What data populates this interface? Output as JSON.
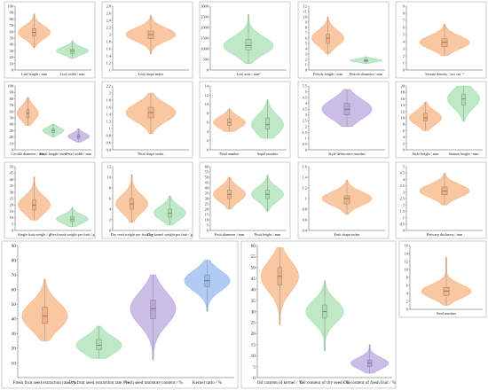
{
  "colors": {
    "orange": "#f6b27e",
    "green": "#a6dfb0",
    "purple": "#b8a4dc",
    "blue": "#93b7ef",
    "box_fill": "#ffffff",
    "box_stroke": "#7a7a7a"
  },
  "chart_data": [
    {
      "type": "violin",
      "ylim": [
        0,
        100
      ],
      "yticks": [
        0,
        10,
        20,
        30,
        40,
        50,
        60,
        70,
        80,
        90,
        100
      ],
      "categories": [
        "Leaf length / mm",
        "Leaf width / mm"
      ],
      "series": [
        {
          "category": "Leaf length / mm",
          "color": "orange",
          "min": 35,
          "q1": 53,
          "median": 59,
          "q3": 65,
          "max": 88
        },
        {
          "category": "Leaf width / mm",
          "color": "green",
          "min": 18,
          "q1": 26,
          "median": 30,
          "q3": 33,
          "max": 46
        }
      ]
    },
    {
      "type": "violin",
      "ylim": [
        1.0,
        2.8
      ],
      "yticks": [
        1.0,
        1.2,
        1.4,
        1.6,
        1.8,
        2.0,
        2.2,
        2.4,
        2.6,
        2.8
      ],
      "categories": [
        "Leaf shape index"
      ],
      "series": [
        {
          "category": "Leaf shape index",
          "color": "orange",
          "min": 1.45,
          "q1": 1.88,
          "median": 2.0,
          "q3": 2.1,
          "max": 2.55
        }
      ]
    },
    {
      "type": "violin",
      "ylim": [
        0,
        3000
      ],
      "yticks": [
        0,
        500,
        1000,
        1500,
        2000,
        2500,
        3000
      ],
      "categories": [
        "Leaf area / mm²"
      ],
      "series": [
        {
          "category": "Leaf area / mm²",
          "color": "green",
          "min": 300,
          "q1": 950,
          "median": 1150,
          "q3": 1450,
          "max": 2600
        }
      ]
    },
    {
      "type": "violin",
      "ylim": [
        0,
        12
      ],
      "yticks": [
        0,
        1,
        2,
        3,
        4,
        5,
        6,
        7,
        8,
        9,
        10,
        11,
        12
      ],
      "categories": [
        "Petiole length / mm",
        "Petiole diameter / mm"
      ],
      "series": [
        {
          "category": "Petiole length / mm",
          "color": "orange",
          "min": 3,
          "q1": 5,
          "median": 6,
          "q3": 6.7,
          "max": 10
        },
        {
          "category": "Petiole diameter / mm",
          "color": "green",
          "min": 1.2,
          "q1": 1.6,
          "median": 1.8,
          "q3": 1.95,
          "max": 2.5
        }
      ]
    },
    {
      "type": "violin",
      "ylim": [
        0,
        9
      ],
      "yticks": [
        0,
        1,
        2,
        3,
        4,
        5,
        6,
        7,
        8,
        9
      ],
      "categories": [
        "Serrate density / pcs cm⁻¹"
      ],
      "series": [
        {
          "category": "Serrate density / pcs cm⁻¹",
          "color": "orange",
          "min": 2,
          "q1": 3.3,
          "median": 3.9,
          "q3": 4.4,
          "max": 6.5
        }
      ]
    },
    {
      "type": "violin",
      "ylim": [
        0,
        100
      ],
      "yticks": [
        0,
        10,
        20,
        30,
        40,
        50,
        60,
        70,
        80,
        90,
        100
      ],
      "categories": [
        "Corolla diameter / mm",
        "Petal length / mm",
        "Petal width / mm"
      ],
      "series": [
        {
          "category": "Corolla diameter / mm",
          "color": "orange",
          "min": 38,
          "q1": 50,
          "median": 57,
          "q3": 63,
          "max": 82
        },
        {
          "category": "Petal length / mm",
          "color": "green",
          "min": 20,
          "q1": 27,
          "median": 30,
          "q3": 33,
          "max": 40
        },
        {
          "category": "Petal width / mm",
          "color": "purple",
          "min": 12,
          "q1": 18,
          "median": 21,
          "q3": 24,
          "max": 33
        }
      ]
    },
    {
      "type": "violin",
      "ylim": [
        0.4,
        2.2
      ],
      "yticks": [
        0.4,
        0.6,
        0.8,
        1.0,
        1.2,
        1.4,
        1.6,
        1.8,
        2.0,
        2.2
      ],
      "categories": [
        "Petal shape index"
      ],
      "series": [
        {
          "category": "Petal shape index",
          "color": "orange",
          "min": 0.85,
          "q1": 1.3,
          "median": 1.45,
          "q3": 1.6,
          "max": 2.0
        }
      ]
    },
    {
      "type": "violin",
      "ylim": [
        0,
        14
      ],
      "yticks": [
        0,
        2,
        4,
        6,
        8,
        10,
        12,
        14
      ],
      "categories": [
        "Petal number",
        "Sepal number"
      ],
      "series": [
        {
          "category": "Petal number",
          "color": "orange",
          "min": 4,
          "q1": 5.3,
          "median": 6,
          "q3": 6.8,
          "max": 9
        },
        {
          "category": "Sepal number",
          "color": "green",
          "min": 2.5,
          "q1": 4.5,
          "median": 5.5,
          "q3": 7,
          "max": 11
        }
      ]
    },
    {
      "type": "violin",
      "ylim": [
        0,
        5.5
      ],
      "yticks": [
        0,
        0.5,
        1.0,
        1.5,
        2.0,
        2.5,
        3.0,
        3.5,
        4.0,
        4.5,
        5.0,
        5.5
      ],
      "categories": [
        "Style dehiscence number"
      ],
      "series": [
        {
          "category": "Style dehiscence number",
          "color": "purple",
          "min": 2,
          "q1": 3,
          "median": 3.5,
          "q3": 4,
          "max": 5.2
        }
      ]
    },
    {
      "type": "violin",
      "ylim": [
        0,
        20
      ],
      "yticks": [
        0,
        2,
        4,
        6,
        8,
        10,
        12,
        14,
        16,
        18,
        20
      ],
      "categories": [
        "Style height / mm",
        "Stamen height / mm"
      ],
      "series": [
        {
          "category": "Style height / mm",
          "color": "orange",
          "min": 6,
          "q1": 9,
          "median": 10,
          "q3": 11.5,
          "max": 15
        },
        {
          "category": "Stamen height / mm",
          "color": "green",
          "min": 9,
          "q1": 14,
          "median": 16,
          "q3": 17.5,
          "max": 20
        }
      ]
    },
    {
      "type": "violin",
      "ylim": [
        0,
        50
      ],
      "yticks": [
        0,
        5,
        10,
        15,
        20,
        25,
        30,
        35,
        40,
        45,
        50
      ],
      "categories": [
        "Single fruit weight / g",
        "Fresh seed weight per fruit / g"
      ],
      "series": [
        {
          "category": "Single fruit weight / g",
          "color": "orange",
          "min": 8,
          "q1": 16,
          "median": 20,
          "q3": 24,
          "max": 42
        },
        {
          "category": "Fresh seed weight per fruit / g",
          "color": "green",
          "min": 3,
          "q1": 7,
          "median": 9,
          "q3": 11,
          "max": 18
        }
      ]
    },
    {
      "type": "violin",
      "ylim": [
        0,
        12
      ],
      "yticks": [
        0,
        2,
        4,
        6,
        8,
        10,
        12
      ],
      "categories": [
        "Dry seed weight per fruit / g",
        "Dry kernel weight per fruit / g"
      ],
      "series": [
        {
          "category": "Dry seed weight per fruit / g",
          "color": "orange",
          "min": 1.5,
          "q1": 4,
          "median": 5,
          "q3": 6,
          "max": 10.5
        },
        {
          "category": "Dry kernel weight per fruit / g",
          "color": "green",
          "min": 1,
          "q1": 2.5,
          "median": 3.3,
          "q3": 4,
          "max": 6.5
        }
      ]
    },
    {
      "type": "violin",
      "ylim": [
        0,
        60
      ],
      "yticks": [
        0,
        5,
        10,
        15,
        20,
        25,
        30,
        35,
        40,
        45,
        50,
        55,
        60
      ],
      "categories": [
        "Fruit diameter / mm",
        "Fruit height / mm"
      ],
      "series": [
        {
          "category": "Fruit diameter / mm",
          "color": "orange",
          "min": 20,
          "q1": 30,
          "median": 34,
          "q3": 38,
          "max": 50
        },
        {
          "category": "Fruit height / mm",
          "color": "green",
          "min": 18,
          "q1": 30,
          "median": 34,
          "q3": 38,
          "max": 52
        }
      ]
    },
    {
      "type": "violin",
      "ylim": [
        0.4,
        1.6
      ],
      "yticks": [
        0.4,
        0.6,
        0.8,
        1.0,
        1.2,
        1.4,
        1.6
      ],
      "categories": [
        "Fruit shape index"
      ],
      "series": [
        {
          "category": "Fruit shape index",
          "color": "orange",
          "min": 0.7,
          "q1": 0.9,
          "median": 1.0,
          "q3": 1.05,
          "max": 1.35
        }
      ]
    },
    {
      "type": "violin",
      "ylim": [
        0,
        5
      ],
      "yticks": [
        0,
        0.5,
        1.0,
        1.5,
        2.0,
        2.5,
        3.0,
        3.5,
        4.0,
        4.5,
        5.0
      ],
      "categories": [
        "Pericarp thickness / mm"
      ],
      "series": [
        {
          "category": "Pericarp thickness / mm",
          "color": "orange",
          "min": 2,
          "q1": 2.8,
          "median": 3.1,
          "q3": 3.4,
          "max": 4.5
        }
      ]
    },
    {
      "type": "violin",
      "ylim": [
        0,
        90
      ],
      "yticks": [
        10,
        20,
        30,
        40,
        50,
        60,
        70,
        80,
        90
      ],
      "categories": [
        "Fresh fruit seed extraction rate / %",
        "Dry fruit seed extraction rate / %",
        "Fresh seed moisture content / %",
        "Kernel ratio / %"
      ],
      "series": [
        {
          "category": "Fresh fruit seed extraction rate / %",
          "color": "orange",
          "min": 25,
          "q1": 37,
          "median": 42,
          "q3": 48,
          "max": 67
        },
        {
          "category": "Dry fruit seed extraction rate / %",
          "color": "green",
          "min": 13,
          "q1": 19,
          "median": 22,
          "q3": 26,
          "max": 35
        },
        {
          "category": "Fresh seed moisture content / %",
          "color": "purple",
          "min": 12,
          "q1": 40,
          "median": 47,
          "q3": 53,
          "max": 70
        },
        {
          "category": "Kernel ratio / %",
          "color": "blue",
          "min": 45,
          "q1": 62,
          "median": 66,
          "q3": 70,
          "max": 80
        }
      ]
    },
    {
      "type": "violin",
      "ylim": [
        0,
        60
      ],
      "yticks": [
        0,
        5,
        10,
        15,
        20,
        25,
        30,
        35,
        40,
        45,
        50,
        55,
        60
      ],
      "categories": [
        "Oil content of kernel / %",
        "Oil content of dry seed / %",
        "Oil content of fresh fruit / %"
      ],
      "series": [
        {
          "category": "Oil content of kernel / %",
          "color": "orange",
          "min": 24,
          "q1": 42,
          "median": 46,
          "q3": 50,
          "max": 59
        },
        {
          "category": "Oil content of dry seed / %",
          "color": "green",
          "min": 12,
          "q1": 27,
          "median": 30,
          "q3": 33,
          "max": 44
        },
        {
          "category": "Oil content of fresh fruit / %",
          "color": "purple",
          "min": 2,
          "q1": 5,
          "median": 6.5,
          "q3": 8,
          "max": 15
        }
      ]
    },
    {
      "type": "violin",
      "ylim": [
        0,
        16
      ],
      "yticks": [
        0,
        2,
        4,
        6,
        8,
        10,
        12,
        14,
        16
      ],
      "categories": [
        "Seed number"
      ],
      "series": [
        {
          "category": "Seed number",
          "color": "orange",
          "min": 1,
          "q1": 3.5,
          "median": 4.5,
          "q3": 5.5,
          "max": 13
        }
      ]
    }
  ]
}
